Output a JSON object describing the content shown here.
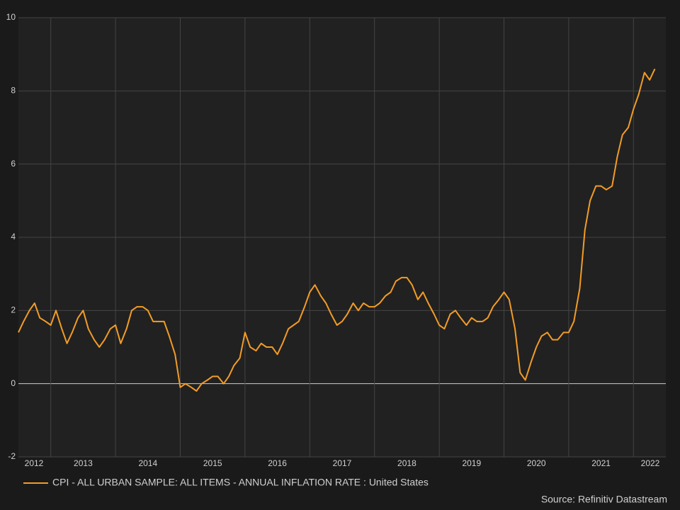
{
  "chart_data": {
    "type": "line",
    "x": [
      2012.5,
      2012.58,
      2012.67,
      2012.75,
      2012.83,
      2012.92,
      2013,
      2013.08,
      2013.17,
      2013.25,
      2013.33,
      2013.42,
      2013.5,
      2013.58,
      2013.67,
      2013.75,
      2013.83,
      2013.92,
      2014,
      2014.08,
      2014.17,
      2014.25,
      2014.33,
      2014.42,
      2014.5,
      2014.58,
      2014.67,
      2014.75,
      2014.83,
      2014.92,
      2015,
      2015.08,
      2015.17,
      2015.25,
      2015.33,
      2015.42,
      2015.5,
      2015.58,
      2015.67,
      2015.75,
      2015.83,
      2015.92,
      2016,
      2016.08,
      2016.17,
      2016.25,
      2016.33,
      2016.42,
      2016.5,
      2016.58,
      2016.67,
      2016.75,
      2016.83,
      2016.92,
      2017,
      2017.08,
      2017.17,
      2017.25,
      2017.33,
      2017.42,
      2017.5,
      2017.58,
      2017.67,
      2017.75,
      2017.83,
      2017.92,
      2018,
      2018.08,
      2018.17,
      2018.25,
      2018.33,
      2018.42,
      2018.5,
      2018.58,
      2018.67,
      2018.75,
      2018.83,
      2018.92,
      2019,
      2019.08,
      2019.17,
      2019.25,
      2019.33,
      2019.42,
      2019.5,
      2019.58,
      2019.67,
      2019.75,
      2019.83,
      2019.92,
      2020,
      2020.08,
      2020.17,
      2020.25,
      2020.33,
      2020.42,
      2020.5,
      2020.58,
      2020.67,
      2020.75,
      2020.83,
      2020.92,
      2021,
      2021.08,
      2021.17,
      2021.25,
      2021.33,
      2021.42,
      2021.5,
      2021.58,
      2021.67,
      2021.75,
      2021.83,
      2021.92,
      2022,
      2022.08,
      2022.17,
      2022.25,
      2022.33
    ],
    "series": [
      {
        "name": "CPI - ALL URBAN SAMPLE: ALL ITEMS - ANNUAL INFLATION RATE : United States",
        "color": "#f39c26",
        "values": [
          1.4,
          1.7,
          2.0,
          2.2,
          1.8,
          1.7,
          1.6,
          2.0,
          1.5,
          1.1,
          1.4,
          1.8,
          2.0,
          1.5,
          1.2,
          1.0,
          1.2,
          1.5,
          1.6,
          1.1,
          1.5,
          2.0,
          2.1,
          2.1,
          2.0,
          1.7,
          1.7,
          1.7,
          1.3,
          0.8,
          -0.1,
          0.0,
          -0.1,
          -0.2,
          0.0,
          0.1,
          0.2,
          0.2,
          0.0,
          0.2,
          0.5,
          0.7,
          1.4,
          1.0,
          0.9,
          1.1,
          1.0,
          1.0,
          0.8,
          1.1,
          1.5,
          1.6,
          1.7,
          2.1,
          2.5,
          2.7,
          2.4,
          2.2,
          1.9,
          1.6,
          1.7,
          1.9,
          2.2,
          2.0,
          2.2,
          2.1,
          2.1,
          2.2,
          2.4,
          2.5,
          2.8,
          2.9,
          2.9,
          2.7,
          2.3,
          2.5,
          2.2,
          1.9,
          1.6,
          1.5,
          1.9,
          2.0,
          1.8,
          1.6,
          1.8,
          1.7,
          1.7,
          1.8,
          2.1,
          2.3,
          2.5,
          2.3,
          1.5,
          0.3,
          0.1,
          0.6,
          1.0,
          1.3,
          1.4,
          1.2,
          1.2,
          1.4,
          1.4,
          1.7,
          2.6,
          4.2,
          5.0,
          5.4,
          5.4,
          5.3,
          5.4,
          6.2,
          6.8,
          7.0,
          7.5,
          7.9,
          8.5,
          8.3,
          8.6
        ]
      }
    ],
    "xlim": [
      2012.5,
      2022.5
    ],
    "xticks": [
      {
        "value": 2012.5,
        "label": "2012"
      },
      {
        "value": 2013.5,
        "label": "2013"
      },
      {
        "value": 2014.5,
        "label": "2014"
      },
      {
        "value": 2015.5,
        "label": "2015"
      },
      {
        "value": 2016.5,
        "label": "2016"
      },
      {
        "value": 2017.5,
        "label": "2017"
      },
      {
        "value": 2018.5,
        "label": "2018"
      },
      {
        "value": 2019.5,
        "label": "2019"
      },
      {
        "value": 2020.5,
        "label": "2020"
      },
      {
        "value": 2021.5,
        "label": "2021"
      },
      {
        "value": 2022.5,
        "label": "2022"
      }
    ],
    "ylim": [
      -2,
      10
    ],
    "yticks": [
      -2,
      0,
      2,
      4,
      6,
      8,
      10
    ],
    "grid": true,
    "zero_line": true,
    "legend": "bottom-left",
    "source": "Source: Refinitiv Datastream"
  }
}
